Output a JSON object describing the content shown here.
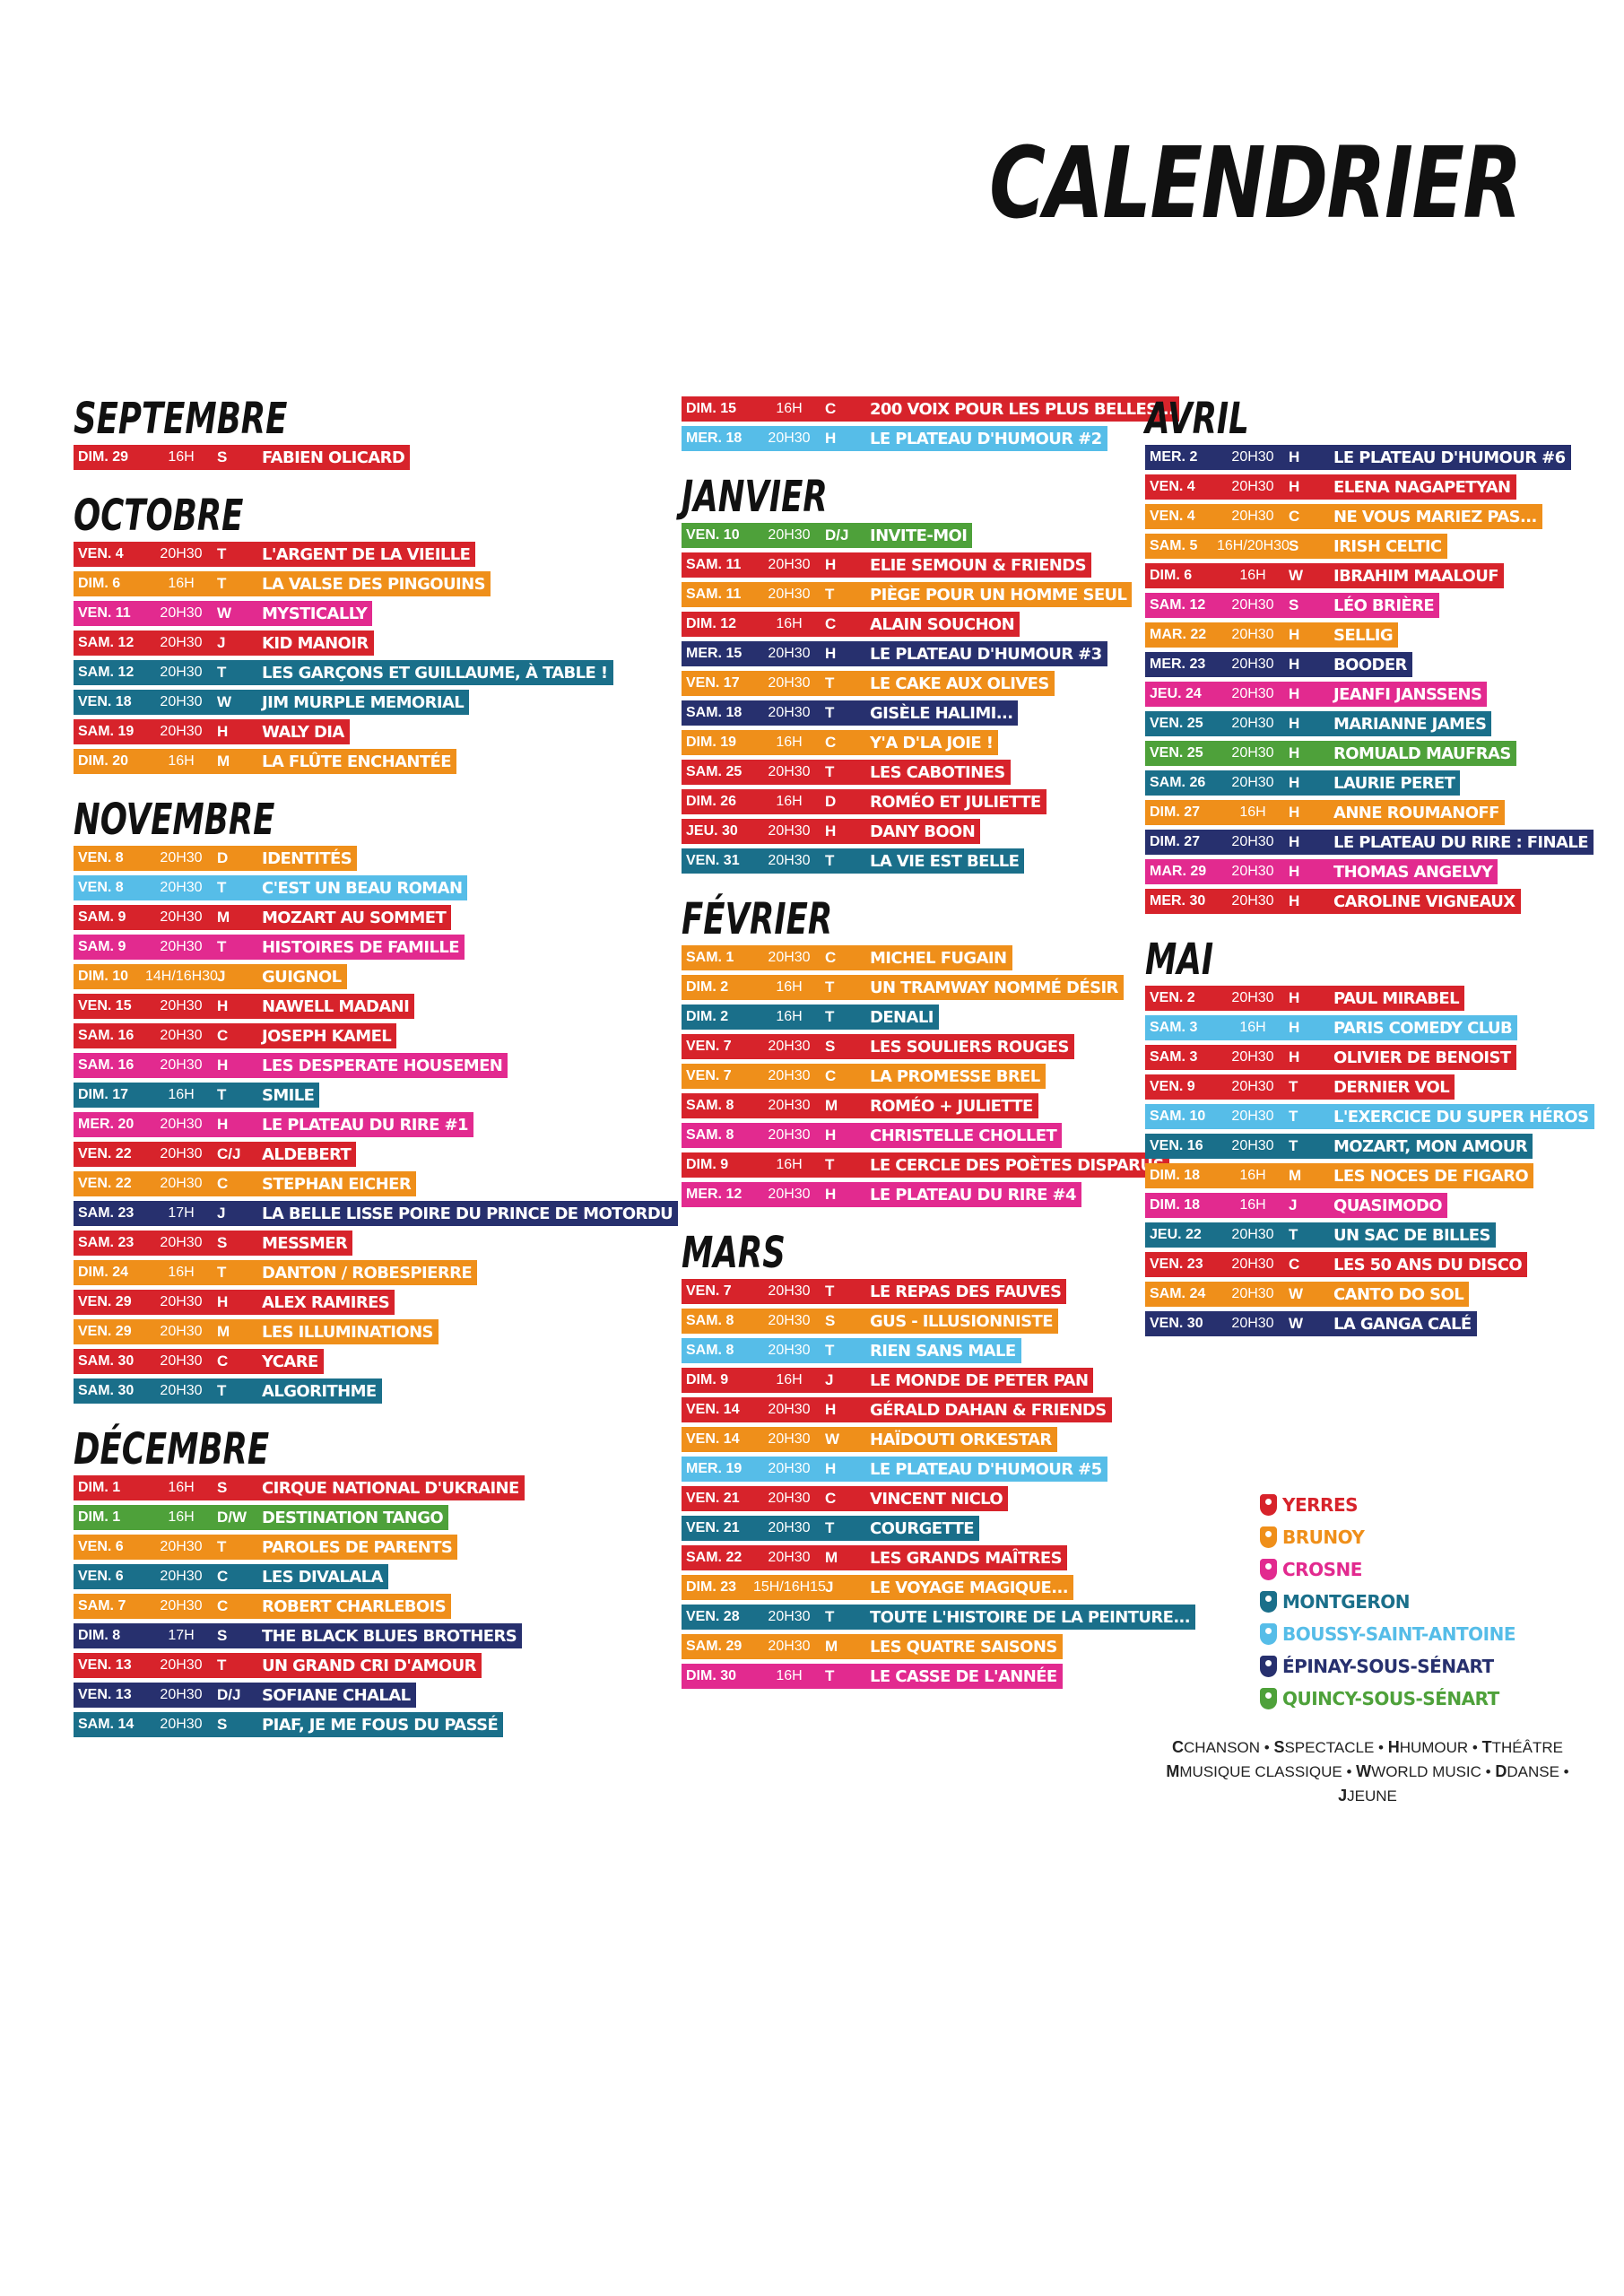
{
  "title": "CALENDRIER",
  "colors": {
    "YERRES": "#d7232b",
    "BRUNOY": "#ef8f1a",
    "CROSNE": "#e22a8f",
    "MONTGERON": "#1a6f8a",
    "BOUSSY": "#56bde8",
    "EPINAY": "#27306e",
    "QUINCY": "#4ea13a"
  },
  "columns": [
    [
      {
        "month": "SEPTEMBRE",
        "events": [
          {
            "d": "DIM. 29",
            "t": "16H",
            "c": "S",
            "title": "FABIEN OLICARD",
            "v": "YERRES"
          }
        ]
      },
      {
        "month": "OCTOBRE",
        "events": [
          {
            "d": "VEN. 4",
            "t": "20H30",
            "c": "T",
            "title": "L'ARGENT DE LA VIEILLE",
            "v": "YERRES"
          },
          {
            "d": "DIM. 6",
            "t": "16H",
            "c": "T",
            "title": "LA VALSE DES PINGOUINS",
            "v": "BRUNOY"
          },
          {
            "d": "VEN. 11",
            "t": "20H30",
            "c": "W",
            "title": "MYSTICALLY",
            "v": "CROSNE"
          },
          {
            "d": "SAM. 12",
            "t": "20H30",
            "c": "J",
            "title": "KID MANOIR",
            "v": "YERRES"
          },
          {
            "d": "SAM. 12",
            "t": "20H30",
            "c": "T",
            "title": "LES GARÇONS ET GUILLAUME, À TABLE !",
            "v": "MONTGERON"
          },
          {
            "d": "VEN. 18",
            "t": "20H30",
            "c": "W",
            "title": "JIM MURPLE MEMORIAL",
            "v": "MONTGERON"
          },
          {
            "d": "SAM. 19",
            "t": "20H30",
            "c": "H",
            "title": "WALY DIA",
            "v": "YERRES"
          },
          {
            "d": "DIM. 20",
            "t": "16H",
            "c": "M",
            "title": "LA FLÛTE ENCHANTÉE",
            "v": "BRUNOY"
          }
        ]
      },
      {
        "month": "NOVEMBRE",
        "events": [
          {
            "d": "VEN. 8",
            "t": "20H30",
            "c": "D",
            "title": "IDENTITÉS",
            "v": "BRUNOY"
          },
          {
            "d": "VEN. 8",
            "t": "20H30",
            "c": "T",
            "title": "C'EST UN BEAU ROMAN",
            "v": "BOUSSY"
          },
          {
            "d": "SAM. 9",
            "t": "20H30",
            "c": "M",
            "title": "MOZART AU SOMMET",
            "v": "YERRES"
          },
          {
            "d": "SAM. 9",
            "t": "20H30",
            "c": "T",
            "title": "HISTOIRES DE FAMILLE",
            "v": "CROSNE"
          },
          {
            "d": "DIM. 10",
            "t": "14H/16H30",
            "c": "J",
            "title": "GUIGNOL",
            "v": "BRUNOY"
          },
          {
            "d": "VEN. 15",
            "t": "20H30",
            "c": "H",
            "title": "NAWELL MADANI",
            "v": "YERRES"
          },
          {
            "d": "SAM. 16",
            "t": "20H30",
            "c": "C",
            "title": "JOSEPH KAMEL",
            "v": "YERRES"
          },
          {
            "d": "SAM. 16",
            "t": "20H30",
            "c": "H",
            "title": "LES DESPERATE HOUSEMEN",
            "v": "CROSNE"
          },
          {
            "d": "DIM. 17",
            "t": "16H",
            "c": "T",
            "title": "SMILE",
            "v": "MONTGERON"
          },
          {
            "d": "MER. 20",
            "t": "20H30",
            "c": "H",
            "title": "LE PLATEAU DU RIRE #1",
            "v": "CROSNE"
          },
          {
            "d": "VEN. 22",
            "t": "20H30",
            "c": "C/J",
            "title": "ALDEBERT",
            "v": "YERRES"
          },
          {
            "d": "VEN. 22",
            "t": "20H30",
            "c": "C",
            "title": "STEPHAN EICHER",
            "v": "BRUNOY"
          },
          {
            "d": "SAM. 23",
            "t": "17H",
            "c": "J",
            "title": "LA BELLE LISSE POIRE DU PRINCE DE MOTORDU",
            "v": "EPINAY"
          },
          {
            "d": "SAM. 23",
            "t": "20H30",
            "c": "S",
            "title": "MESSMER",
            "v": "YERRES"
          },
          {
            "d": "DIM. 24",
            "t": "16H",
            "c": "T",
            "title": "DANTON / ROBESPIERRE",
            "v": "BRUNOY"
          },
          {
            "d": "VEN. 29",
            "t": "20H30",
            "c": "H",
            "title": "ALEX RAMIRES",
            "v": "YERRES"
          },
          {
            "d": "VEN. 29",
            "t": "20H30",
            "c": "M",
            "title": "LES ILLUMINATIONS",
            "v": "BRUNOY"
          },
          {
            "d": "SAM. 30",
            "t": "20H30",
            "c": "C",
            "title": "YCARE",
            "v": "YERRES"
          },
          {
            "d": "SAM. 30",
            "t": "20H30",
            "c": "T",
            "title": "ALGORITHME",
            "v": "MONTGERON"
          }
        ]
      },
      {
        "month": "DÉCEMBRE",
        "events": [
          {
            "d": "DIM. 1",
            "t": "16H",
            "c": "S",
            "title": "CIRQUE NATIONAL D'UKRAINE",
            "v": "YERRES"
          },
          {
            "d": "DIM. 1",
            "t": "16H",
            "c": "D/W",
            "title": "DESTINATION TANGO",
            "v": "QUINCY"
          },
          {
            "d": "VEN. 6",
            "t": "20H30",
            "c": "T",
            "title": "PAROLES DE PARENTS",
            "v": "BRUNOY"
          },
          {
            "d": "VEN. 6",
            "t": "20H30",
            "c": "C",
            "title": "LES DIVALALA",
            "v": "MONTGERON"
          },
          {
            "d": "SAM. 7",
            "t": "20H30",
            "c": "C",
            "title": "ROBERT CHARLEBOIS",
            "v": "BRUNOY"
          },
          {
            "d": "DIM. 8",
            "t": "17H",
            "c": "S",
            "title": "THE BLACK BLUES BROTHERS",
            "v": "EPINAY"
          },
          {
            "d": "VEN. 13",
            "t": "20H30",
            "c": "T",
            "title": "UN GRAND CRI D'AMOUR",
            "v": "YERRES"
          },
          {
            "d": "VEN. 13",
            "t": "20H30",
            "c": "D/J",
            "title": "SOFIANE CHALAL",
            "v": "EPINAY"
          },
          {
            "d": "SAM. 14",
            "t": "20H30",
            "c": "S",
            "title": "PIAF, JE ME FOUS DU PASSÉ",
            "v": "MONTGERON"
          }
        ]
      }
    ],
    [
      {
        "month": "",
        "events": [
          {
            "d": "DIM. 15",
            "t": "16H",
            "c": "C",
            "title": "200 VOIX POUR LES PLUS BELLES...",
            "v": "YERRES"
          },
          {
            "d": "MER. 18",
            "t": "20H30",
            "c": "H",
            "title": "LE PLATEAU D'HUMOUR #2",
            "v": "BOUSSY"
          }
        ]
      },
      {
        "month": "JANVIER",
        "events": [
          {
            "d": "VEN. 10",
            "t": "20H30",
            "c": "D/J",
            "title": "INVITE-MOI",
            "v": "QUINCY"
          },
          {
            "d": "SAM. 11",
            "t": "20H30",
            "c": "H",
            "title": "ELIE SEMOUN & FRIENDS",
            "v": "YERRES"
          },
          {
            "d": "SAM. 11",
            "t": "20H30",
            "c": "T",
            "title": "PIÈGE POUR UN HOMME SEUL",
            "v": "BRUNOY"
          },
          {
            "d": "DIM. 12",
            "t": "16H",
            "c": "C",
            "title": "ALAIN SOUCHON",
            "v": "YERRES"
          },
          {
            "d": "MER. 15",
            "t": "20H30",
            "c": "H",
            "title": "LE PLATEAU D'HUMOUR #3",
            "v": "EPINAY"
          },
          {
            "d": "VEN. 17",
            "t": "20H30",
            "c": "T",
            "title": "LE CAKE AUX OLIVES",
            "v": "BRUNOY"
          },
          {
            "d": "SAM. 18",
            "t": "20H30",
            "c": "T",
            "title": "GISÈLE HALIMI...",
            "v": "EPINAY"
          },
          {
            "d": "DIM. 19",
            "t": "16H",
            "c": "C",
            "title": "Y'A D'LA JOIE !",
            "v": "BRUNOY"
          },
          {
            "d": "SAM. 25",
            "t": "20H30",
            "c": "T",
            "title": "LES CABOTINES",
            "v": "YERRES"
          },
          {
            "d": "DIM. 26",
            "t": "16H",
            "c": "D",
            "title": "ROMÉO ET JULIETTE",
            "v": "YERRES"
          },
          {
            "d": "JEU. 30",
            "t": "20H30",
            "c": "H",
            "title": "DANY BOON",
            "v": "YERRES"
          },
          {
            "d": "VEN. 31",
            "t": "20H30",
            "c": "T",
            "title": "LA VIE EST BELLE",
            "v": "MONTGERON"
          }
        ]
      },
      {
        "month": "FÉVRIER",
        "events": [
          {
            "d": "SAM. 1",
            "t": "20H30",
            "c": "C",
            "title": "MICHEL FUGAIN",
            "v": "BRUNOY"
          },
          {
            "d": "DIM. 2",
            "t": "16H",
            "c": "T",
            "title": "UN TRAMWAY NOMMÉ DÉSIR",
            "v": "BRUNOY"
          },
          {
            "d": "DIM. 2",
            "t": "16H",
            "c": "T",
            "title": "DENALI",
            "v": "MONTGERON"
          },
          {
            "d": "VEN. 7",
            "t": "20H30",
            "c": "S",
            "title": "LES SOULIERS ROUGES",
            "v": "YERRES"
          },
          {
            "d": "VEN. 7",
            "t": "20H30",
            "c": "C",
            "title": "LA PROMESSE BREL",
            "v": "BRUNOY"
          },
          {
            "d": "SAM. 8",
            "t": "20H30",
            "c": "M",
            "title": "ROMÉO + JULIETTE",
            "v": "YERRES"
          },
          {
            "d": "SAM. 8",
            "t": "20H30",
            "c": "H",
            "title": "CHRISTELLE CHOLLET",
            "v": "CROSNE"
          },
          {
            "d": "DIM. 9",
            "t": "16H",
            "c": "T",
            "title": "LE CERCLE DES POÈTES DISPARUS",
            "v": "YERRES"
          },
          {
            "d": "MER. 12",
            "t": "20H30",
            "c": "H",
            "title": "LE PLATEAU DU RIRE #4",
            "v": "CROSNE"
          }
        ]
      },
      {
        "month": "MARS",
        "events": [
          {
            "d": "VEN. 7",
            "t": "20H30",
            "c": "T",
            "title": "LE REPAS DES FAUVES",
            "v": "YERRES"
          },
          {
            "d": "SAM. 8",
            "t": "20H30",
            "c": "S",
            "title": "GUS - ILLUSIONNISTE",
            "v": "BRUNOY"
          },
          {
            "d": "SAM. 8",
            "t": "20H30",
            "c": "T",
            "title": "RIEN SANS MALE",
            "v": "BOUSSY"
          },
          {
            "d": "DIM. 9",
            "t": "16H",
            "c": "J",
            "title": "LE MONDE DE PETER PAN",
            "v": "YERRES"
          },
          {
            "d": "VEN. 14",
            "t": "20H30",
            "c": "H",
            "title": "GÉRALD DAHAN & FRIENDS",
            "v": "YERRES"
          },
          {
            "d": "VEN. 14",
            "t": "20H30",
            "c": "W",
            "title": "HAÏDOUTI ORKESTAR",
            "v": "BRUNOY"
          },
          {
            "d": "MER. 19",
            "t": "20H30",
            "c": "H",
            "title": "LE PLATEAU D'HUMOUR #5",
            "v": "BOUSSY"
          },
          {
            "d": "VEN. 21",
            "t": "20H30",
            "c": "C",
            "title": "VINCENT NICLO",
            "v": "YERRES"
          },
          {
            "d": "VEN. 21",
            "t": "20H30",
            "c": "T",
            "title": "COURGETTE",
            "v": "MONTGERON"
          },
          {
            "d": "SAM. 22",
            "t": "20H30",
            "c": "M",
            "title": "LES GRANDS MAÎTRES",
            "v": "YERRES"
          },
          {
            "d": "DIM. 23",
            "t": "15H/16H15",
            "c": "J",
            "title": "LE VOYAGE MAGIQUE...",
            "v": "BRUNOY"
          },
          {
            "d": "VEN. 28",
            "t": "20H30",
            "c": "T",
            "title": "TOUTE L'HISTOIRE DE LA PEINTURE...",
            "v": "MONTGERON"
          },
          {
            "d": "SAM. 29",
            "t": "20H30",
            "c": "M",
            "title": "LES QUATRE SAISONS",
            "v": "BRUNOY"
          },
          {
            "d": "DIM. 30",
            "t": "16H",
            "c": "T",
            "title": "LE CASSE DE L'ANNÉE",
            "v": "CROSNE"
          }
        ]
      }
    ],
    [
      {
        "month": "AVRIL",
        "events": [
          {
            "d": "MER. 2",
            "t": "20H30",
            "c": "H",
            "title": "LE PLATEAU D'HUMOUR #6",
            "v": "EPINAY"
          },
          {
            "d": "VEN. 4",
            "t": "20H30",
            "c": "H",
            "title": "ELENA NAGAPETYAN",
            "v": "YERRES"
          },
          {
            "d": "VEN. 4",
            "t": "20H30",
            "c": "C",
            "title": "NE VOUS MARIEZ PAS...",
            "v": "BRUNOY"
          },
          {
            "d": "SAM. 5",
            "t": "16H/20H30",
            "c": "S",
            "title": "IRISH CELTIC",
            "v": "BRUNOY"
          },
          {
            "d": "DIM. 6",
            "t": "16H",
            "c": "W",
            "title": "IBRAHIM MAALOUF",
            "v": "YERRES"
          },
          {
            "d": "SAM. 12",
            "t": "20H30",
            "c": "S",
            "title": "LÉO BRIÈRE",
            "v": "CROSNE"
          },
          {
            "d": "MAR. 22",
            "t": "20H30",
            "c": "H",
            "title": "SELLIG",
            "v": "BRUNOY"
          },
          {
            "d": "MER. 23",
            "t": "20H30",
            "c": "H",
            "title": "BOODER",
            "v": "EPINAY"
          },
          {
            "d": "JEU. 24",
            "t": "20H30",
            "c": "H",
            "title": "JEANFI JANSSENS",
            "v": "CROSNE"
          },
          {
            "d": "VEN. 25",
            "t": "20H30",
            "c": "H",
            "title": "MARIANNE JAMES",
            "v": "MONTGERON"
          },
          {
            "d": "VEN. 25",
            "t": "20H30",
            "c": "H",
            "title": "ROMUALD MAUFRAS",
            "v": "QUINCY"
          },
          {
            "d": "SAM. 26",
            "t": "20H30",
            "c": "H",
            "title": "LAURIE PERET",
            "v": "MONTGERON"
          },
          {
            "d": "DIM. 27",
            "t": "16H",
            "c": "H",
            "title": "ANNE ROUMANOFF",
            "v": "BRUNOY"
          },
          {
            "d": "DIM. 27",
            "t": "20H30",
            "c": "H",
            "title": "LE PLATEAU DU RIRE : FINALE",
            "v": "EPINAY"
          },
          {
            "d": "MAR. 29",
            "t": "20H30",
            "c": "H",
            "title": "THOMAS ANGELVY",
            "v": "CROSNE"
          },
          {
            "d": "MER. 30",
            "t": "20H30",
            "c": "H",
            "title": "CAROLINE VIGNEAUX",
            "v": "YERRES"
          }
        ]
      },
      {
        "month": "MAI",
        "events": [
          {
            "d": "VEN. 2",
            "t": "20H30",
            "c": "H",
            "title": "PAUL MIRABEL",
            "v": "YERRES"
          },
          {
            "d": "SAM. 3",
            "t": "16H",
            "c": "H",
            "title": "PARIS COMEDY CLUB",
            "v": "BOUSSY"
          },
          {
            "d": "SAM. 3",
            "t": "20H30",
            "c": "H",
            "title": "OLIVIER DE BENOIST",
            "v": "YERRES"
          },
          {
            "d": "VEN. 9",
            "t": "20H30",
            "c": "T",
            "title": "DERNIER VOL",
            "v": "YERRES"
          },
          {
            "d": "SAM. 10",
            "t": "20H30",
            "c": "T",
            "title": "L'EXERCICE DU SUPER HÉROS",
            "v": "BOUSSY"
          },
          {
            "d": "VEN. 16",
            "t": "20H30",
            "c": "T",
            "title": "MOZART, MON AMOUR",
            "v": "MONTGERON"
          },
          {
            "d": "DIM. 18",
            "t": "16H",
            "c": "M",
            "title": "LES NOCES DE FIGARO",
            "v": "BRUNOY"
          },
          {
            "d": "DIM. 18",
            "t": "16H",
            "c": "J",
            "title": "QUASIMODO",
            "v": "CROSNE"
          },
          {
            "d": "JEU. 22",
            "t": "20H30",
            "c": "T",
            "title": "UN SAC DE BILLES",
            "v": "MONTGERON"
          },
          {
            "d": "VEN. 23",
            "t": "20H30",
            "c": "C",
            "title": "LES 50 ANS DU DISCO",
            "v": "YERRES"
          },
          {
            "d": "SAM. 24",
            "t": "20H30",
            "c": "W",
            "title": "CANTO DO SOL",
            "v": "BRUNOY"
          },
          {
            "d": "VEN. 30",
            "t": "20H30",
            "c": "W",
            "title": "LA GANGA CALÉ",
            "v": "EPINAY"
          }
        ]
      }
    ]
  ],
  "legend": [
    {
      "key": "YERRES",
      "label": "YERRES"
    },
    {
      "key": "BRUNOY",
      "label": "BRUNOY"
    },
    {
      "key": "CROSNE",
      "label": "CROSNE"
    },
    {
      "key": "MONTGERON",
      "label": "MONTGERON"
    },
    {
      "key": "BOUSSY",
      "label": "BOUSSY-SAINT-ANTOINE"
    },
    {
      "key": "EPINAY",
      "label": "ÉPINAY-SOUS-SÉNART"
    },
    {
      "key": "QUINCY",
      "label": "QUINCY-SOUS-SÉNART"
    }
  ],
  "codes": {
    "line1": [
      {
        "k": "C",
        "v": "CHANSON"
      },
      {
        "k": "S",
        "v": "SPECTACLE"
      },
      {
        "k": "H",
        "v": "HUMOUR"
      },
      {
        "k": "T",
        "v": "THÉÂTRE"
      }
    ],
    "line2": [
      {
        "k": "M",
        "v": "MUSIQUE CLASSIQUE"
      },
      {
        "k": "W",
        "v": "WORLD MUSIC"
      },
      {
        "k": "D",
        "v": "DANSE"
      },
      {
        "k": "J",
        "v": "JEUNE"
      }
    ]
  }
}
